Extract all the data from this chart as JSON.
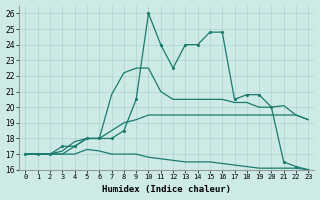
{
  "title": "",
  "xlabel": "Humidex (Indice chaleur)",
  "background_color": "#ceeae7",
  "grid_color": "#aed4d0",
  "line_color": "#1a7a6e",
  "xlim": [
    -0.5,
    23.5
  ],
  "ylim": [
    16,
    26.5
  ],
  "yticks": [
    16,
    17,
    18,
    19,
    20,
    21,
    22,
    23,
    24,
    25,
    26
  ],
  "xticks": [
    0,
    1,
    2,
    3,
    4,
    5,
    6,
    7,
    8,
    9,
    10,
    11,
    12,
    13,
    14,
    15,
    16,
    17,
    18,
    19,
    20,
    21,
    22,
    23
  ],
  "series": [
    {
      "x": [
        0,
        1,
        2,
        3,
        4,
        5,
        6,
        7,
        8,
        9,
        10,
        11,
        12,
        13,
        14,
        15,
        16,
        17,
        18,
        19,
        20,
        21,
        22,
        23
      ],
      "y": [
        17.0,
        17.0,
        17.0,
        17.5,
        17.5,
        18.0,
        18.0,
        18.0,
        18.5,
        20.5,
        26.0,
        24.0,
        22.5,
        24.0,
        24.0,
        24.8,
        24.8,
        20.5,
        20.8,
        20.8,
        20.0,
        16.5,
        16.2,
        16.0
      ],
      "marker": true
    },
    {
      "x": [
        0,
        1,
        2,
        3,
        4,
        5,
        6,
        7,
        8,
        9,
        10,
        11,
        12,
        13,
        14,
        15,
        16,
        17,
        18,
        19,
        20,
        21,
        22,
        23
      ],
      "y": [
        17.0,
        17.0,
        17.0,
        17.2,
        17.8,
        18.0,
        18.0,
        20.8,
        22.2,
        22.5,
        22.5,
        21.0,
        20.5,
        20.5,
        20.5,
        20.5,
        20.5,
        20.3,
        20.3,
        20.0,
        20.0,
        20.1,
        19.5,
        19.2
      ],
      "marker": false
    },
    {
      "x": [
        0,
        1,
        2,
        3,
        4,
        5,
        6,
        7,
        8,
        9,
        10,
        11,
        12,
        13,
        14,
        15,
        16,
        17,
        18,
        19,
        20,
        21,
        22,
        23
      ],
      "y": [
        17.0,
        17.0,
        17.0,
        17.0,
        17.5,
        18.0,
        18.0,
        18.5,
        19.0,
        19.2,
        19.5,
        19.5,
        19.5,
        19.5,
        19.5,
        19.5,
        19.5,
        19.5,
        19.5,
        19.5,
        19.5,
        19.5,
        19.5,
        19.2
      ],
      "marker": false
    },
    {
      "x": [
        0,
        1,
        2,
        3,
        4,
        5,
        6,
        7,
        8,
        9,
        10,
        11,
        12,
        13,
        14,
        15,
        16,
        17,
        18,
        19,
        20,
        21,
        22,
        23
      ],
      "y": [
        17.0,
        17.0,
        17.0,
        17.0,
        17.0,
        17.3,
        17.2,
        17.0,
        17.0,
        17.0,
        16.8,
        16.7,
        16.6,
        16.5,
        16.5,
        16.5,
        16.4,
        16.3,
        16.2,
        16.1,
        16.1,
        16.1,
        16.1,
        16.0
      ],
      "marker": false
    }
  ]
}
